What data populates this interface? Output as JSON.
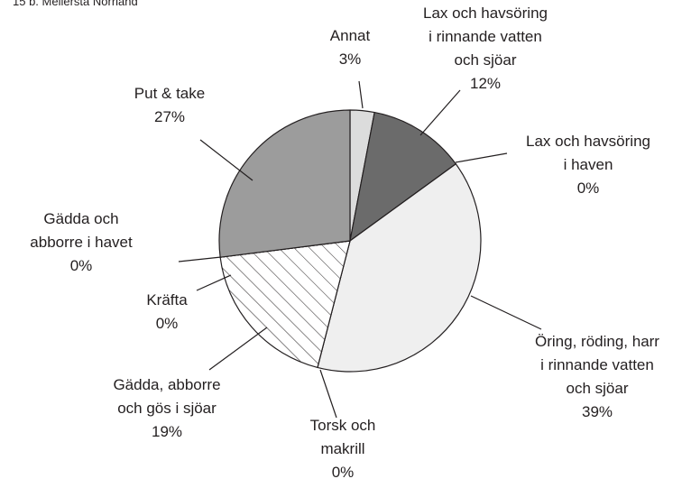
{
  "chart_data": {
    "type": "pie",
    "title": "15 b. Mellersta Norrland",
    "categories": [
      "Annat",
      "Lax och havsöring\ni rinnande vatten\noch sjöar",
      "Lax och havsöring\ni haven",
      "Öring, röding, harr\ni rinnande vatten\noch sjöar",
      "Torsk och\nmakrill",
      "Gädda, abborre\noch gös i sjöar",
      "Kräfta",
      "Gädda och\nabborre i havet",
      "Put & take"
    ],
    "values": [
      3,
      12,
      0,
      39,
      0,
      19,
      0,
      0,
      27
    ],
    "value_labels": [
      "3%",
      "12%",
      "0%",
      "39%",
      "0%",
      "19%",
      "0%",
      "0%",
      "27%"
    ],
    "colors": [
      "#dcdcdc",
      "#6b6b6b",
      "#cfcfcf",
      "#efefef",
      "#cfcfcf",
      "#ffffff",
      "#cfcfcf",
      "#cfcfcf",
      "#9c9c9c"
    ],
    "patterns": [
      null,
      null,
      null,
      null,
      null,
      "hatch",
      null,
      null,
      null
    ]
  }
}
